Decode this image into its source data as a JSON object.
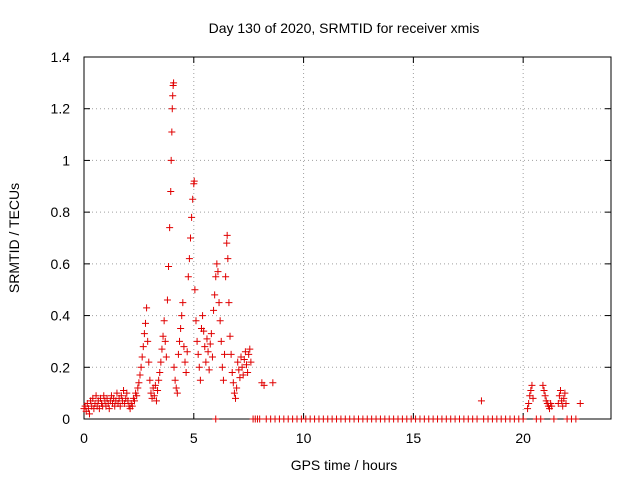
{
  "chart_data": {
    "type": "scatter",
    "title": "Day 130 of 2020, SRMTID for receiver xmis",
    "xlabel": "GPS time / hours",
    "ylabel": "SRMTID / TECUs",
    "xlim": [
      0,
      24
    ],
    "ylim": [
      0,
      1.4
    ],
    "xticks": [
      0,
      5,
      10,
      15,
      20
    ],
    "xtick_labels": [
      "0",
      "5",
      "10",
      "15",
      "20"
    ],
    "yticks": [
      0,
      0.2,
      0.4,
      0.6,
      0.8,
      1,
      1.2,
      1.4
    ],
    "ytick_labels": [
      "0",
      "0.2",
      "0.4",
      "0.6",
      "0.8",
      "1",
      "1.2",
      "1.4"
    ],
    "grid": true,
    "marker": "+",
    "series": [
      {
        "name": "SRMTID",
        "color": "#e00000",
        "points": [
          [
            0.0,
            0.04
          ],
          [
            0.05,
            0.05
          ],
          [
            0.1,
            0.03
          ],
          [
            0.15,
            0.06
          ],
          [
            0.2,
            0.04
          ],
          [
            0.25,
            0.02
          ],
          [
            0.3,
            0.07
          ],
          [
            0.35,
            0.05
          ],
          [
            0.4,
            0.08
          ],
          [
            0.45,
            0.04
          ],
          [
            0.5,
            0.06
          ],
          [
            0.55,
            0.09
          ],
          [
            0.6,
            0.05
          ],
          [
            0.65,
            0.07
          ],
          [
            0.7,
            0.04
          ],
          [
            0.75,
            0.08
          ],
          [
            0.8,
            0.06
          ],
          [
            0.85,
            0.05
          ],
          [
            0.9,
            0.09
          ],
          [
            0.95,
            0.07
          ],
          [
            1.0,
            0.05
          ],
          [
            1.05,
            0.08
          ],
          [
            1.1,
            0.06
          ],
          [
            1.15,
            0.04
          ],
          [
            1.2,
            0.07
          ],
          [
            1.25,
            0.09
          ],
          [
            1.3,
            0.06
          ],
          [
            1.35,
            0.08
          ],
          [
            1.4,
            0.05
          ],
          [
            1.45,
            0.07
          ],
          [
            1.5,
            0.1
          ],
          [
            1.55,
            0.06
          ],
          [
            1.6,
            0.08
          ],
          [
            1.65,
            0.05
          ],
          [
            1.7,
            0.09
          ],
          [
            1.75,
            0.07
          ],
          [
            1.8,
            0.11
          ],
          [
            1.85,
            0.06
          ],
          [
            1.9,
            0.08
          ],
          [
            1.95,
            0.1
          ],
          [
            2.0,
            0.07
          ],
          [
            2.05,
            0.05
          ],
          [
            2.1,
            0.04
          ],
          [
            2.15,
            0.06
          ],
          [
            2.2,
            0.05
          ],
          [
            2.25,
            0.08
          ],
          [
            2.3,
            0.07
          ],
          [
            2.35,
            0.1
          ],
          [
            2.4,
            0.09
          ],
          [
            2.45,
            0.12
          ],
          [
            2.5,
            0.14
          ],
          [
            2.55,
            0.17
          ],
          [
            2.6,
            0.2
          ],
          [
            2.65,
            0.24
          ],
          [
            2.7,
            0.28
          ],
          [
            2.75,
            0.33
          ],
          [
            2.8,
            0.37
          ],
          [
            2.85,
            0.43
          ],
          [
            2.9,
            0.3
          ],
          [
            2.95,
            0.22
          ],
          [
            3.0,
            0.15
          ],
          [
            3.05,
            0.1
          ],
          [
            3.1,
            0.08
          ],
          [
            3.15,
            0.12
          ],
          [
            3.2,
            0.09
          ],
          [
            3.25,
            0.13
          ],
          [
            3.3,
            0.07
          ],
          [
            3.35,
            0.11
          ],
          [
            3.4,
            0.15
          ],
          [
            3.45,
            0.18
          ],
          [
            3.5,
            0.22
          ],
          [
            3.55,
            0.27
          ],
          [
            3.6,
            0.32
          ],
          [
            3.65,
            0.38
          ],
          [
            3.7,
            0.3
          ],
          [
            3.75,
            0.24
          ],
          [
            3.8,
            0.46
          ],
          [
            3.85,
            0.59
          ],
          [
            3.9,
            0.74
          ],
          [
            3.95,
            0.88
          ],
          [
            3.97,
            1.0
          ],
          [
            4.0,
            1.11
          ],
          [
            4.02,
            1.2
          ],
          [
            4.04,
            1.25
          ],
          [
            4.06,
            1.29
          ],
          [
            4.08,
            1.3
          ],
          [
            4.1,
            0.2
          ],
          [
            4.15,
            0.15
          ],
          [
            4.2,
            0.12
          ],
          [
            4.25,
            0.1
          ],
          [
            4.3,
            0.25
          ],
          [
            4.35,
            0.3
          ],
          [
            4.4,
            0.35
          ],
          [
            4.45,
            0.4
          ],
          [
            4.5,
            0.45
          ],
          [
            4.55,
            0.28
          ],
          [
            4.6,
            0.22
          ],
          [
            4.65,
            0.18
          ],
          [
            4.7,
            0.26
          ],
          [
            4.75,
            0.55
          ],
          [
            4.8,
            0.62
          ],
          [
            4.85,
            0.7
          ],
          [
            4.9,
            0.78
          ],
          [
            4.95,
            0.85
          ],
          [
            5.0,
            0.91
          ],
          [
            5.02,
            0.92
          ],
          [
            5.05,
            0.5
          ],
          [
            5.1,
            0.38
          ],
          [
            5.15,
            0.3
          ],
          [
            5.2,
            0.25
          ],
          [
            5.25,
            0.2
          ],
          [
            5.3,
            0.15
          ],
          [
            5.35,
            0.35
          ],
          [
            5.4,
            0.4
          ],
          [
            5.45,
            0.34
          ],
          [
            5.5,
            0.28
          ],
          [
            5.55,
            0.22
          ],
          [
            5.6,
            0.31
          ],
          [
            5.65,
            0.26
          ],
          [
            5.7,
            0.19
          ],
          [
            5.75,
            0.29
          ],
          [
            5.8,
            0.33
          ],
          [
            5.85,
            0.24
          ],
          [
            5.9,
            0.42
          ],
          [
            5.95,
            0.48
          ],
          [
            6.0,
            0.55
          ],
          [
            6.05,
            0.6
          ],
          [
            6.1,
            0.57
          ],
          [
            6.15,
            0.45
          ],
          [
            6.2,
            0.38
          ],
          [
            6.25,
            0.3
          ],
          [
            6.3,
            0.2
          ],
          [
            6.35,
            0.15
          ],
          [
            6.4,
            0.25
          ],
          [
            6.45,
            0.55
          ],
          [
            6.5,
            0.68
          ],
          [
            6.52,
            0.71
          ],
          [
            6.55,
            0.62
          ],
          [
            6.6,
            0.45
          ],
          [
            6.65,
            0.32
          ],
          [
            6.7,
            0.25
          ],
          [
            6.75,
            0.18
          ],
          [
            6.8,
            0.14
          ],
          [
            6.85,
            0.1
          ],
          [
            6.9,
            0.08
          ],
          [
            6.95,
            0.12
          ],
          [
            7.0,
            0.22
          ],
          [
            7.05,
            0.19
          ],
          [
            7.1,
            0.16
          ],
          [
            7.15,
            0.24
          ],
          [
            7.2,
            0.2
          ],
          [
            7.25,
            0.17
          ],
          [
            7.3,
            0.23
          ],
          [
            7.35,
            0.26
          ],
          [
            7.4,
            0.21
          ],
          [
            7.45,
            0.18
          ],
          [
            7.5,
            0.25
          ],
          [
            7.55,
            0.27
          ],
          [
            7.6,
            0.22
          ],
          [
            8.1,
            0.14
          ],
          [
            8.2,
            0.13
          ],
          [
            8.6,
            0.14
          ],
          [
            18.1,
            0.07
          ],
          [
            20.2,
            0.04
          ],
          [
            20.25,
            0.06
          ],
          [
            20.3,
            0.09
          ],
          [
            20.35,
            0.11
          ],
          [
            20.4,
            0.13
          ],
          [
            20.45,
            0.08
          ],
          [
            20.9,
            0.13
          ],
          [
            20.95,
            0.11
          ],
          [
            21.0,
            0.09
          ],
          [
            21.05,
            0.07
          ],
          [
            21.1,
            0.06
          ],
          [
            21.15,
            0.05
          ],
          [
            21.2,
            0.04
          ],
          [
            21.25,
            0.06
          ],
          [
            21.3,
            0.05
          ],
          [
            21.6,
            0.06
          ],
          [
            21.65,
            0.09
          ],
          [
            21.7,
            0.11
          ],
          [
            21.75,
            0.07
          ],
          [
            21.8,
            0.05
          ],
          [
            21.85,
            0.08
          ],
          [
            21.9,
            0.1
          ],
          [
            21.95,
            0.06
          ],
          [
            22.6,
            0.06
          ],
          [
            6.0,
            0.0
          ],
          [
            7.7,
            0.0
          ],
          [
            7.8,
            0.0
          ],
          [
            7.9,
            0.0
          ],
          [
            8.0,
            0.0
          ],
          [
            8.3,
            0.0
          ],
          [
            8.5,
            0.0
          ],
          [
            8.7,
            0.0
          ],
          [
            8.9,
            0.0
          ],
          [
            9.1,
            0.0
          ],
          [
            9.3,
            0.0
          ],
          [
            9.5,
            0.0
          ],
          [
            9.7,
            0.0
          ],
          [
            9.9,
            0.0
          ],
          [
            10.1,
            0.0
          ],
          [
            10.3,
            0.0
          ],
          [
            10.5,
            0.0
          ],
          [
            10.7,
            0.0
          ],
          [
            10.9,
            0.0
          ],
          [
            11.1,
            0.0
          ],
          [
            11.3,
            0.0
          ],
          [
            11.5,
            0.0
          ],
          [
            11.7,
            0.0
          ],
          [
            11.9,
            0.0
          ],
          [
            12.1,
            0.0
          ],
          [
            12.3,
            0.0
          ],
          [
            12.5,
            0.0
          ],
          [
            12.7,
            0.0
          ],
          [
            12.9,
            0.0
          ],
          [
            13.1,
            0.0
          ],
          [
            13.3,
            0.0
          ],
          [
            13.5,
            0.0
          ],
          [
            13.7,
            0.0
          ],
          [
            13.9,
            0.0
          ],
          [
            14.1,
            0.0
          ],
          [
            14.3,
            0.0
          ],
          [
            14.5,
            0.0
          ],
          [
            14.7,
            0.0
          ],
          [
            14.9,
            0.0
          ],
          [
            15.1,
            0.0
          ],
          [
            15.3,
            0.0
          ],
          [
            15.5,
            0.0
          ],
          [
            15.7,
            0.0
          ],
          [
            15.9,
            0.0
          ],
          [
            16.1,
            0.0
          ],
          [
            16.3,
            0.0
          ],
          [
            16.5,
            0.0
          ],
          [
            16.7,
            0.0
          ],
          [
            16.9,
            0.0
          ],
          [
            17.1,
            0.0
          ],
          [
            17.3,
            0.0
          ],
          [
            17.5,
            0.0
          ],
          [
            17.7,
            0.0
          ],
          [
            17.9,
            0.0
          ],
          [
            18.2,
            0.0
          ],
          [
            18.4,
            0.0
          ],
          [
            18.6,
            0.0
          ],
          [
            18.8,
            0.0
          ],
          [
            19.0,
            0.0
          ],
          [
            19.2,
            0.0
          ],
          [
            19.4,
            0.0
          ],
          [
            19.6,
            0.0
          ],
          [
            19.8,
            0.0
          ],
          [
            20.0,
            0.0
          ],
          [
            20.6,
            0.0
          ],
          [
            20.8,
            0.0
          ],
          [
            21.4,
            0.0
          ],
          [
            22.0,
            0.0
          ],
          [
            22.2,
            0.0
          ],
          [
            22.4,
            0.0
          ]
        ]
      }
    ]
  }
}
